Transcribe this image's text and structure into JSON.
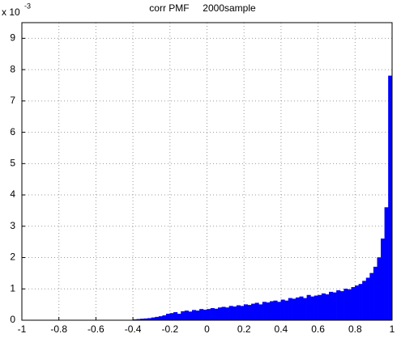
{
  "chart_data": {
    "type": "histogram",
    "title": "corr PMF     2000sample",
    "y_scale_base": "x 10",
    "y_scale_exponent": "-3",
    "bins": [
      -1,
      -0.98,
      -0.96,
      -0.94,
      -0.92,
      -0.9,
      -0.88,
      -0.86,
      -0.84,
      -0.82,
      -0.8,
      -0.78,
      -0.76,
      -0.74,
      -0.72,
      -0.7,
      -0.68,
      -0.66,
      -0.64,
      -0.62,
      -0.6,
      -0.58,
      -0.56,
      -0.54,
      -0.52,
      -0.5,
      -0.48,
      -0.46,
      -0.44,
      -0.42,
      -0.4,
      -0.38,
      -0.36,
      -0.34,
      -0.32,
      -0.3,
      -0.28,
      -0.26,
      -0.24,
      -0.22,
      -0.2,
      -0.18,
      -0.16,
      -0.14,
      -0.12,
      -0.1,
      -0.08,
      -0.06,
      -0.04,
      -0.02,
      0,
      0.02,
      0.04,
      0.06,
      0.08,
      0.1,
      0.12,
      0.14,
      0.16,
      0.18,
      0.2,
      0.22,
      0.24,
      0.26,
      0.28,
      0.3,
      0.32,
      0.34,
      0.36,
      0.38,
      0.4,
      0.42,
      0.44,
      0.46,
      0.48,
      0.5,
      0.52,
      0.54,
      0.56,
      0.58,
      0.6,
      0.62,
      0.64,
      0.66,
      0.68,
      0.7,
      0.72,
      0.74,
      0.76,
      0.78,
      0.8,
      0.82,
      0.84,
      0.86,
      0.88,
      0.9,
      0.92,
      0.94,
      0.96,
      0.98,
      1
    ],
    "values": [
      0,
      0,
      0,
      0,
      0,
      0,
      0,
      0,
      0,
      0,
      0,
      0,
      0,
      0,
      0,
      0,
      0,
      0,
      0,
      0,
      0,
      0,
      0,
      0,
      0,
      0,
      0,
      0,
      0,
      0,
      0.02,
      0.03,
      0.04,
      0.05,
      0.06,
      0.08,
      0.1,
      0.12,
      0.15,
      0.2,
      0.22,
      0.25,
      0.2,
      0.28,
      0.3,
      0.27,
      0.32,
      0.3,
      0.35,
      0.33,
      0.35,
      0.38,
      0.36,
      0.4,
      0.42,
      0.4,
      0.45,
      0.43,
      0.47,
      0.45,
      0.5,
      0.48,
      0.52,
      0.55,
      0.5,
      0.58,
      0.56,
      0.6,
      0.62,
      0.58,
      0.65,
      0.62,
      0.7,
      0.68,
      0.72,
      0.75,
      0.7,
      0.8,
      0.75,
      0.78,
      0.8,
      0.85,
      0.82,
      0.9,
      0.88,
      0.95,
      0.92,
      1.0,
      0.98,
      1.05,
      1.1,
      1.15,
      1.25,
      1.35,
      1.5,
      1.7,
      2.0,
      2.6,
      3.6,
      7.8
    ],
    "color": "#0000ff",
    "xlim": [
      -1,
      1
    ],
    "xticks": [
      -1,
      -0.8,
      -0.6,
      -0.4,
      -0.2,
      0,
      0.2,
      0.4,
      0.6,
      0.8,
      1
    ],
    "ylim": [
      0,
      9.5
    ],
    "yticks": [
      0,
      1,
      2,
      3,
      4,
      5,
      6,
      7,
      8,
      9
    ],
    "grid": true
  }
}
